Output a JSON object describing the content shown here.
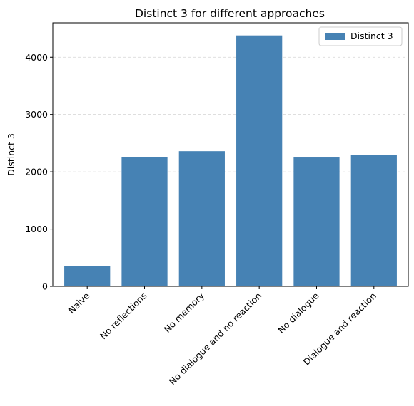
{
  "chart_data": {
    "type": "bar",
    "title": "Distinct 3 for different approaches",
    "xlabel": "",
    "ylabel": "Distinct 3",
    "categories": [
      "Naive",
      "No reflections",
      "No memory",
      "No dialogue and no reaction",
      "No dialogue",
      "Dialogue and reaction"
    ],
    "series": [
      {
        "name": "Distinct 3",
        "values": [
          350,
          2260,
          2360,
          4380,
          2250,
          2290
        ]
      }
    ],
    "ylim": [
      0,
      4600
    ],
    "yticks": [
      0,
      1000,
      2000,
      3000,
      4000
    ],
    "grid": "y-dashed",
    "legend_position": "top-right",
    "colors": {
      "bar": "#4682b4",
      "grid": "#d3d3d3",
      "axis": "#000000"
    }
  }
}
